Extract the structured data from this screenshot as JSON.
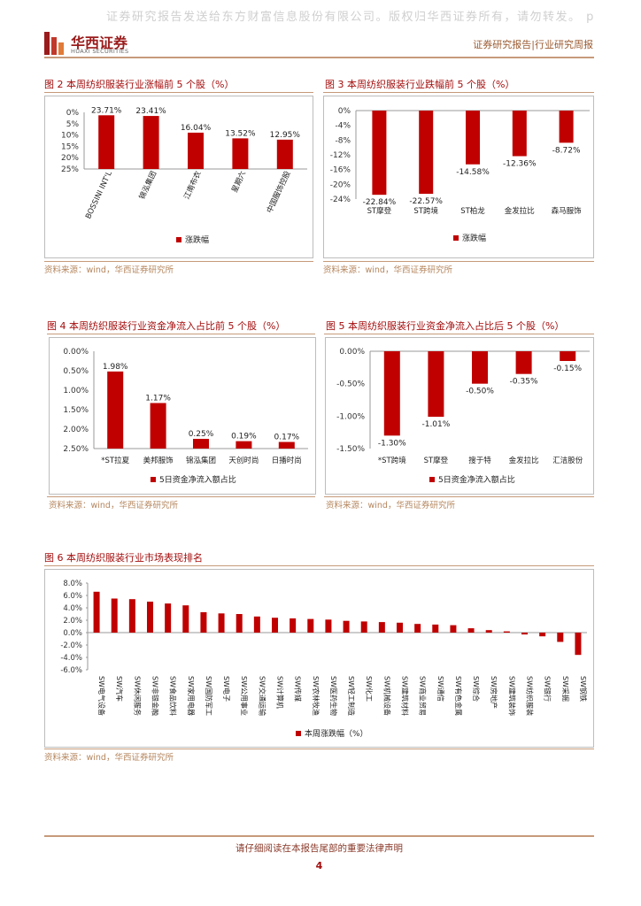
{
  "header": {
    "watermark": "证券研究报告发送给东方财富信息股份有限公司。版权归华西证券所有，请勿转发。 p",
    "logo_cn": "华西证券",
    "logo_en": "HUAXI SECURITIES",
    "report_type": "证券研究报告|行业研究周报"
  },
  "footer": {
    "disclaimer": "请仔细阅读在本报告尾部的重要法律声明",
    "page": "4"
  },
  "colors": {
    "bar": "#c00000",
    "accent": "#a30c0c",
    "line": "#c69a7a"
  },
  "figures": [
    {
      "title": "图 2 本周纺织服装行业涨幅前 5 个股（%）",
      "source": "资料来源：wind，华西证券研究所",
      "chart_data": {
        "type": "bar",
        "categories": [
          "BOSSINI INT'L",
          "锦泓集团",
          "江南布衣",
          "星期六",
          "中国服饰控股"
        ],
        "values": [
          23.71,
          23.41,
          16.04,
          13.52,
          12.95
        ],
        "value_labels": [
          "23.71%",
          "23.41%",
          "16.04%",
          "13.52%",
          "12.95%"
        ],
        "ylim": [
          0,
          25
        ],
        "yticks": [
          "0%",
          "5%",
          "10%",
          "15%",
          "20%",
          "25%"
        ],
        "legend": "涨跌幅"
      }
    },
    {
      "title": "图 3 本周纺织服装行业跌幅前 5 个股（%）",
      "source": "资料来源：wind，华西证券研究所",
      "chart_data": {
        "type": "bar",
        "categories": [
          "ST摩登",
          "ST跨境",
          "ST柏龙",
          "金发拉比",
          "森马服饰"
        ],
        "values": [
          -22.84,
          -22.57,
          -14.58,
          -12.36,
          -8.72
        ],
        "value_labels": [
          "-22.84%",
          "-22.57%",
          "-14.58%",
          "-12.36%",
          "-8.72%"
        ],
        "ylim": [
          -24,
          0
        ],
        "yticks": [
          "0%",
          "-4%",
          "-8%",
          "-12%",
          "-16%",
          "-20%",
          "-24%"
        ],
        "legend": "涨跌幅"
      }
    },
    {
      "title": "图 4 本周纺织服装行业资金净流入占比前 5 个股（%）",
      "source": "资料来源：wind，华西证券研究所",
      "chart_data": {
        "type": "bar",
        "categories": [
          "*ST拉夏",
          "美邦服饰",
          "锦泓集团",
          "天创时尚",
          "日播时尚"
        ],
        "values": [
          1.98,
          1.17,
          0.25,
          0.19,
          0.17
        ],
        "value_labels": [
          "1.98%",
          "1.17%",
          "0.25%",
          "0.19%",
          "0.17%"
        ],
        "ylim": [
          0,
          2.5
        ],
        "yticks": [
          "0.00%",
          "0.50%",
          "1.00%",
          "1.50%",
          "2.00%",
          "2.50%"
        ],
        "legend": "5日资金净流入额占比"
      }
    },
    {
      "title": "图 5 本周纺织服装行业资金净流入占比后 5 个股（%）",
      "source": "资料来源：wind，华西证券研究所",
      "chart_data": {
        "type": "bar",
        "categories": [
          "*ST跨境",
          "ST摩登",
          "搜于特",
          "金发拉比",
          "汇洁股份"
        ],
        "values": [
          -1.3,
          -1.01,
          -0.5,
          -0.35,
          -0.15
        ],
        "value_labels": [
          "-1.30%",
          "-1.01%",
          "-0.50%",
          "-0.35%",
          "-0.15%"
        ],
        "ylim": [
          -1.5,
          0
        ],
        "yticks": [
          "0.00%",
          "-0.50%",
          "-1.00%",
          "-1.50%"
        ],
        "legend": "5日资金净流入额占比"
      }
    },
    {
      "title": "图 6 本周纺织服装行业市场表现排名",
      "source": "资料来源：wind，华西证券研究所",
      "chart_data": {
        "type": "bar",
        "categories": [
          "SW电气设备",
          "SW汽车",
          "SW休闲服务",
          "SW非银金融",
          "SW食品饮料",
          "SW家用电器",
          "SW国防军工",
          "SW电子",
          "SW公用事业",
          "SW交通运输",
          "SW计算机",
          "SW传媒",
          "SW农林牧渔",
          "SW医药生物",
          "SW轻工制造",
          "SW化工",
          "SW机械设备",
          "SW建筑材料",
          "SW商业贸易",
          "SW通信",
          "SW有色金属",
          "SW综合",
          "SW房地产",
          "SW建筑装饰",
          "SW纺织服装",
          "SW银行",
          "SW采掘",
          "SW钢铁"
        ],
        "values": [
          6.6,
          5.5,
          5.4,
          5.0,
          4.7,
          4.4,
          3.3,
          3.1,
          3.0,
          2.6,
          2.4,
          2.3,
          2.2,
          2.1,
          1.9,
          1.8,
          1.7,
          1.6,
          1.4,
          1.3,
          1.2,
          0.7,
          0.4,
          0.2,
          -0.3,
          -0.6,
          -1.5,
          -3.6
        ],
        "ylim": [
          -6,
          8
        ],
        "yticks": [
          "8.0%",
          "6.0%",
          "4.0%",
          "2.0%",
          "0.0%",
          "-2.0%",
          "-4.0%",
          "-6.0%"
        ],
        "legend": "本周涨跌幅（%）"
      }
    }
  ]
}
